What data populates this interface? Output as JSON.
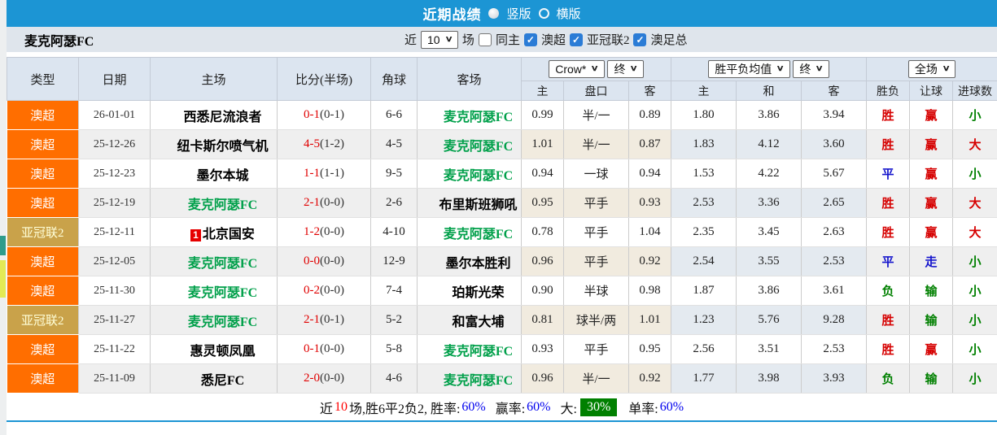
{
  "titlebar": {
    "title": "近期战绩",
    "vertical_label": "竖版",
    "horizontal_label": "横版"
  },
  "filterbar": {
    "team": "麦克阿瑟FC",
    "recent_label": "近",
    "recent_value": "10",
    "matches_label": "场",
    "same_home_label": "同主",
    "leagues": [
      "澳超",
      "亚冠联2",
      "澳足总"
    ]
  },
  "table": {
    "columns": [
      "类型",
      "日期",
      "主场",
      "比分(半场)",
      "角球",
      "客场"
    ],
    "dropdowns": {
      "company": "Crow*",
      "company_time": "终",
      "avg": "胜平负均值",
      "avg_time": "终",
      "full": "全场"
    },
    "subcolumns": [
      "主",
      "盘口",
      "客",
      "主",
      "和",
      "客",
      "胜负",
      "让球",
      "进球数"
    ],
    "rows": [
      {
        "type": "澳超",
        "type_style": "orange",
        "date": "26-01-01",
        "home": "西悉尼流浪者",
        "home_green": false,
        "score": "0-1",
        "half": "(0-1)",
        "corners": "6-6",
        "away": "麦克阿瑟FC",
        "away_green": true,
        "handicap": [
          "0.99",
          "半/一",
          "0.89"
        ],
        "avg": [
          "1.80",
          "3.86",
          "3.94"
        ],
        "results": [
          {
            "text": "胜",
            "color": "red"
          },
          {
            "text": "赢",
            "color": "red"
          },
          {
            "text": "小",
            "color": "green"
          }
        ]
      },
      {
        "type": "澳超",
        "type_style": "orange",
        "date": "25-12-26",
        "home": "纽卡斯尔喷气机",
        "home_green": false,
        "score": "4-5",
        "half": "(1-2)",
        "corners": "4-5",
        "away": "麦克阿瑟FC",
        "away_green": true,
        "handicap": [
          "1.01",
          "半/一",
          "0.87"
        ],
        "avg": [
          "1.83",
          "4.12",
          "3.60"
        ],
        "results": [
          {
            "text": "胜",
            "color": "red"
          },
          {
            "text": "赢",
            "color": "red"
          },
          {
            "text": "大",
            "color": "red"
          }
        ]
      },
      {
        "type": "澳超",
        "type_style": "orange",
        "date": "25-12-23",
        "home": "墨尔本城",
        "home_green": false,
        "score": "1-1",
        "half": "(1-1)",
        "corners": "9-5",
        "away": "麦克阿瑟FC",
        "away_green": true,
        "handicap": [
          "0.94",
          "一球",
          "0.94"
        ],
        "avg": [
          "1.53",
          "4.22",
          "5.67"
        ],
        "results": [
          {
            "text": "平",
            "color": "blue"
          },
          {
            "text": "赢",
            "color": "red"
          },
          {
            "text": "小",
            "color": "green"
          }
        ]
      },
      {
        "type": "澳超",
        "type_style": "orange",
        "date": "25-12-19",
        "home": "麦克阿瑟FC",
        "home_green": true,
        "score": "2-1",
        "half": "(0-0)",
        "corners": "2-6",
        "away": "布里斯班狮吼",
        "away_green": false,
        "handicap": [
          "0.95",
          "平手",
          "0.93"
        ],
        "avg": [
          "2.53",
          "3.36",
          "2.65"
        ],
        "results": [
          {
            "text": "胜",
            "color": "red"
          },
          {
            "text": "赢",
            "color": "red"
          },
          {
            "text": "大",
            "color": "red"
          }
        ]
      },
      {
        "type": "亚冠联2",
        "type_style": "gold",
        "date": "25-12-11",
        "home": "北京国安",
        "home_green": false,
        "home_badge": "1",
        "score": "1-2",
        "half": "(0-0)",
        "corners": "4-10",
        "away": "麦克阿瑟FC",
        "away_green": true,
        "handicap": [
          "0.78",
          "平手",
          "1.04"
        ],
        "avg": [
          "2.35",
          "3.45",
          "2.63"
        ],
        "results": [
          {
            "text": "胜",
            "color": "red"
          },
          {
            "text": "赢",
            "color": "red"
          },
          {
            "text": "大",
            "color": "red"
          }
        ]
      },
      {
        "type": "澳超",
        "type_style": "orange",
        "date": "25-12-05",
        "home": "麦克阿瑟FC",
        "home_green": true,
        "score": "0-0",
        "half": "(0-0)",
        "corners": "12-9",
        "away": "墨尔本胜利",
        "away_green": false,
        "handicap": [
          "0.96",
          "平手",
          "0.92"
        ],
        "avg": [
          "2.54",
          "3.55",
          "2.53"
        ],
        "results": [
          {
            "text": "平",
            "color": "blue"
          },
          {
            "text": "走",
            "color": "blue"
          },
          {
            "text": "小",
            "color": "green"
          }
        ]
      },
      {
        "type": "澳超",
        "type_style": "orange",
        "date": "25-11-30",
        "home": "麦克阿瑟FC",
        "home_green": true,
        "score": "0-2",
        "half": "(0-0)",
        "corners": "7-4",
        "away": "珀斯光荣",
        "away_green": false,
        "handicap": [
          "0.90",
          "半球",
          "0.98"
        ],
        "avg": [
          "1.87",
          "3.86",
          "3.61"
        ],
        "results": [
          {
            "text": "负",
            "color": "green"
          },
          {
            "text": "输",
            "color": "green"
          },
          {
            "text": "小",
            "color": "green"
          }
        ]
      },
      {
        "type": "亚冠联2",
        "type_style": "gold",
        "date": "25-11-27",
        "home": "麦克阿瑟FC",
        "home_green": true,
        "score": "2-1",
        "half": "(0-1)",
        "corners": "5-2",
        "away": "和富大埔",
        "away_green": false,
        "handicap": [
          "0.81",
          "球半/两",
          "1.01"
        ],
        "avg": [
          "1.23",
          "5.76",
          "9.28"
        ],
        "results": [
          {
            "text": "胜",
            "color": "red"
          },
          {
            "text": "输",
            "color": "green"
          },
          {
            "text": "小",
            "color": "green"
          }
        ]
      },
      {
        "type": "澳超",
        "type_style": "orange",
        "date": "25-11-22",
        "home": "惠灵顿凤凰",
        "home_green": false,
        "score": "0-1",
        "half": "(0-0)",
        "corners": "5-8",
        "away": "麦克阿瑟FC",
        "away_green": true,
        "handicap": [
          "0.93",
          "平手",
          "0.95"
        ],
        "avg": [
          "2.56",
          "3.51",
          "2.53"
        ],
        "results": [
          {
            "text": "胜",
            "color": "red"
          },
          {
            "text": "赢",
            "color": "red"
          },
          {
            "text": "小",
            "color": "green"
          }
        ]
      },
      {
        "type": "澳超",
        "type_style": "orange",
        "date": "25-11-09",
        "home": "悉尼FC",
        "home_green": false,
        "score": "2-0",
        "half": "(0-0)",
        "corners": "4-6",
        "away": "麦克阿瑟FC",
        "away_green": true,
        "handicap": [
          "0.96",
          "半/一",
          "0.92"
        ],
        "avg": [
          "1.77",
          "3.98",
          "3.93"
        ],
        "results": [
          {
            "text": "负",
            "color": "green"
          },
          {
            "text": "输",
            "color": "green"
          },
          {
            "text": "小",
            "color": "green"
          }
        ]
      }
    ]
  },
  "summary": {
    "prefix": "近",
    "count": "10",
    "text_mid": "场,胜6平2负2, 胜率:",
    "win_rate": "60%",
    "handicap_label": "赢率:",
    "handicap_rate": "60%",
    "big_label": "大:",
    "big_rate": "30%",
    "single_label": "单率:",
    "single_rate": "60%"
  },
  "colors": {
    "topbar_blue": "#1c95d4",
    "league_orange": "#ff6e00",
    "league_gold": "#c9a24a",
    "team_green": "#00a04a",
    "score_red": "#e00000",
    "win_red": "#d60000",
    "draw_blue": "#1414cc",
    "lose_green": "#008000",
    "rate_blue": "#0000ee",
    "big_badge_green": "#008000",
    "checkbox_blue": "#2b7cd6"
  }
}
